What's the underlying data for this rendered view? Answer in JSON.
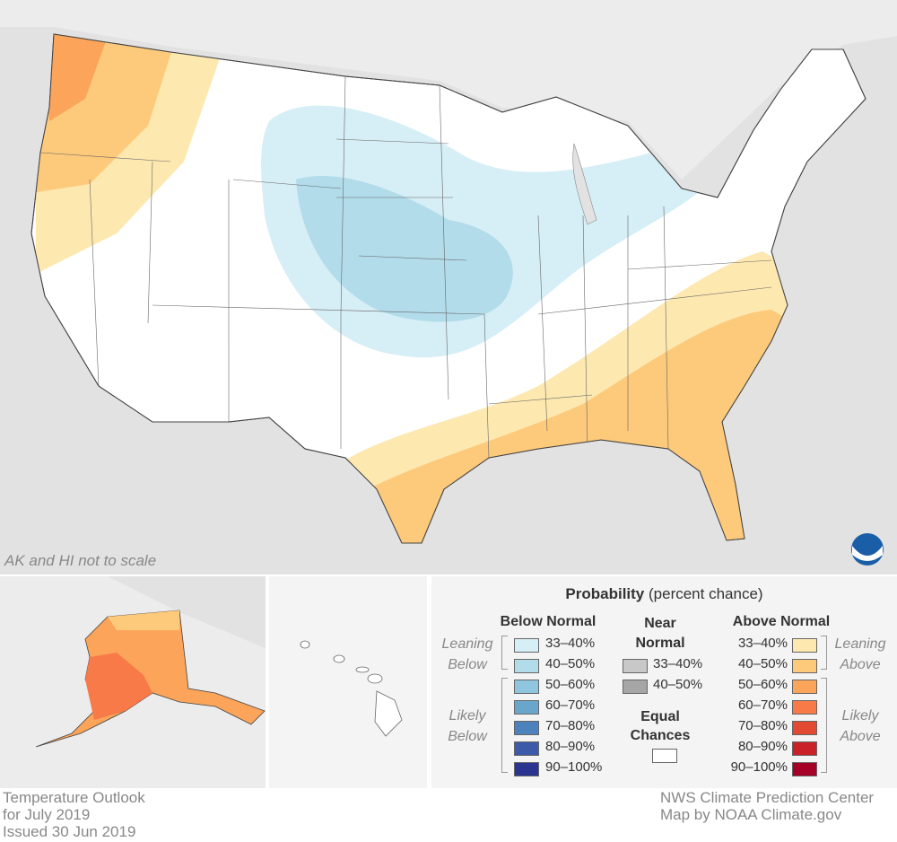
{
  "map": {
    "scale_note": "AK and HI not to scale",
    "logo": "NOAA"
  },
  "legend": {
    "title": "Probability",
    "title_suffix": "(percent chance)",
    "below": {
      "heading": "Below Normal",
      "leaning": "Leaning Below",
      "likely": "Likely Below",
      "items": [
        {
          "label": "33–40%",
          "color": "#d6eef5"
        },
        {
          "label": "40–50%",
          "color": "#b2dcea"
        },
        {
          "label": "50–60%",
          "color": "#8fc5de"
        },
        {
          "label": "60–70%",
          "color": "#6aa6cc"
        },
        {
          "label": "70–80%",
          "color": "#4e82bc"
        },
        {
          "label": "80–90%",
          "color": "#3c5aa8"
        },
        {
          "label": "90–100%",
          "color": "#2c3492"
        }
      ]
    },
    "near": {
      "heading": "Near Normal",
      "items": [
        {
          "label": "33–40%",
          "color": "#c8c8c8"
        },
        {
          "label": "40–50%",
          "color": "#a6a6a6"
        }
      ]
    },
    "equal": {
      "heading": "Equal Chances",
      "color": "#ffffff"
    },
    "above": {
      "heading": "Above Normal",
      "leaning": "Leaning Above",
      "likely": "Likely Above",
      "items": [
        {
          "label": "33–40%",
          "color": "#fde8b0"
        },
        {
          "label": "40–50%",
          "color": "#fdc97a"
        },
        {
          "label": "50–60%",
          "color": "#fca45a"
        },
        {
          "label": "60–70%",
          "color": "#f77a48"
        },
        {
          "label": "70–80%",
          "color": "#e44a33"
        },
        {
          "label": "80–90%",
          "color": "#c92127"
        },
        {
          "label": "90–100%",
          "color": "#a50026"
        }
      ]
    }
  },
  "footer": {
    "line1": "Temperature Outlook",
    "line2": "for July 2019",
    "line3": "Issued 30 Jun 2019",
    "credit1": "NWS Climate Prediction Center",
    "credit2": "Map by NOAA Climate.gov"
  }
}
